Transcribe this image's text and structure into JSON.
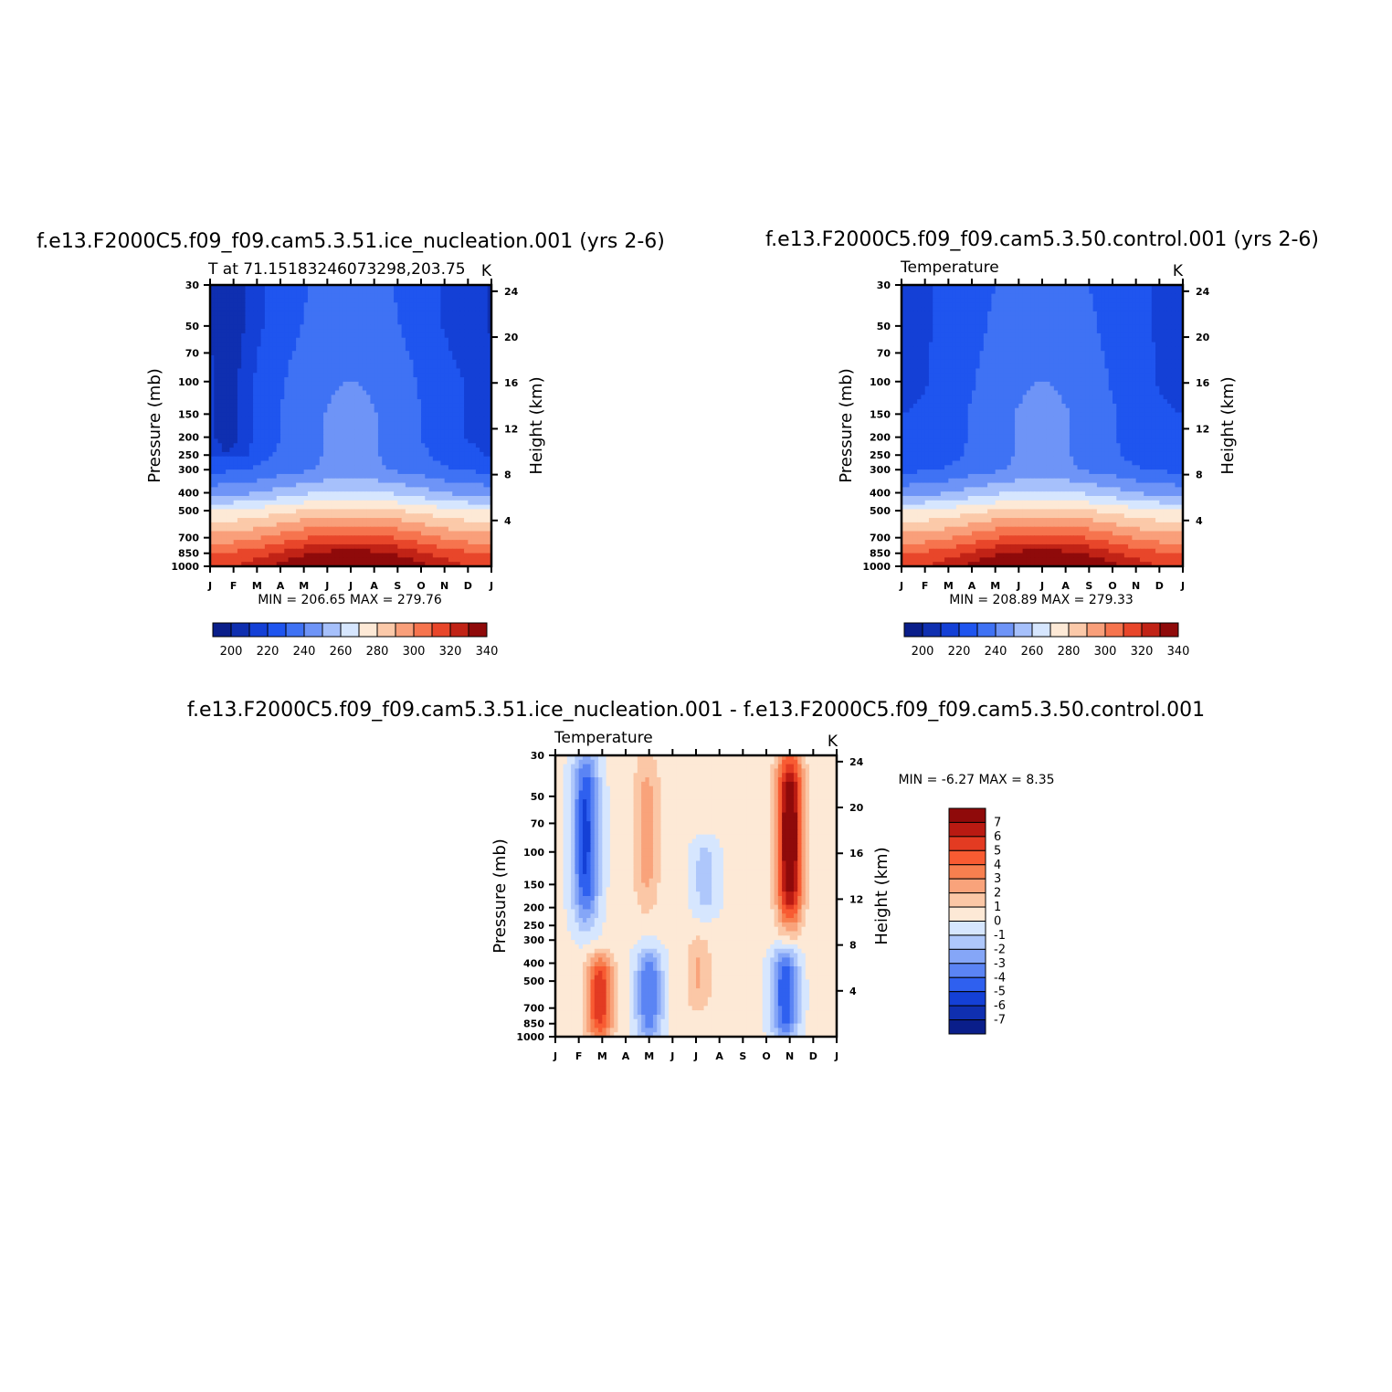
{
  "panels": [
    {
      "id": "test",
      "case_title": "f.e13.F2000C5.f09_f09.cam5.3.51.ice_nucleation.001 (yrs 2-6)",
      "left_string": "T at 71.15183246073298,203.75",
      "right_string": "K",
      "stats": "MIN = 206.65 MAX = 279.76",
      "ylabel": "Pressure (mb)",
      "y2label": "Height (km)"
    },
    {
      "id": "control",
      "case_title": "f.e13.F2000C5.f09_f09.cam5.3.50.control.001 (yrs 2-6)",
      "left_string": "Temperature",
      "right_string": "K",
      "stats": "MIN = 208.89 MAX = 279.33",
      "ylabel": "Pressure (mb)",
      "y2label": "Height (km)"
    },
    {
      "id": "diff",
      "case_title": "f.e13.F2000C5.f09_f09.cam5.3.51.ice_nucleation.001 - f.e13.F2000C5.f09_f09.cam5.3.50.control.001",
      "left_string": "Temperature",
      "right_string": "K",
      "stats": "MIN = -6.27 MAX = 8.35",
      "ylabel": "Pressure (mb)",
      "y2label": "Height (km)"
    }
  ],
  "axes": {
    "months": [
      "J",
      "F",
      "M",
      "A",
      "M",
      "J",
      "J",
      "A",
      "S",
      "O",
      "N",
      "D",
      "J"
    ],
    "pressure_ticks": [
      30,
      50,
      70,
      100,
      150,
      200,
      250,
      300,
      400,
      500,
      700,
      850,
      1000
    ],
    "height_ticks": [
      24,
      20,
      16,
      12,
      8,
      4
    ]
  },
  "colorbars": {
    "temperature": {
      "labels": [
        "200",
        "220",
        "240",
        "260",
        "280",
        "300",
        "320",
        "340"
      ],
      "colors": [
        "#0a1e8a",
        "#0f2fb0",
        "#1440d6",
        "#1f55ef",
        "#3f72f4",
        "#6e94f7",
        "#a6c0fb",
        "#d6e6fe",
        "#fde9d6",
        "#fbc9a9",
        "#f99f7a",
        "#f6744e",
        "#e8462a",
        "#c12316",
        "#8f0a0a"
      ]
    },
    "difference": {
      "labels": [
        "7",
        "6",
        "5",
        "4",
        "3",
        "2",
        "1",
        "0",
        "-1",
        "-2",
        "-3",
        "-4",
        "-5",
        "-6",
        "-7"
      ],
      "colors": [
        "#8f0a0a",
        "#b91a12",
        "#e33b22",
        "#f85b32",
        "#f77f4f",
        "#f9a37b",
        "#fbc7a6",
        "#fde9d6",
        "#d6e6fe",
        "#aec7fb",
        "#85a6f7",
        "#5b84f4",
        "#2f60ef",
        "#1440d6",
        "#0f2fb0",
        "#0a1e8a"
      ]
    }
  },
  "chart_data": [
    {
      "type": "heatmap",
      "title": "T at 71.15183246073298,203.75",
      "x_categories": [
        "J",
        "F",
        "M",
        "A",
        "M",
        "J",
        "J",
        "A",
        "S",
        "O",
        "N",
        "D",
        "J"
      ],
      "y_axis": "pressure (mb), log scale, 1000 at bottom, 30 at top",
      "y2_axis": "Height (km): 4, 8, 12, 16, 20, 24",
      "units": "K",
      "min": 206.65,
      "max": 279.76,
      "contour_levels": [
        200,
        205,
        210,
        215,
        220,
        225,
        230,
        235,
        240,
        245,
        250,
        255,
        260,
        265,
        270,
        275,
        280,
        285
      ],
      "profile_pressure": [
        30,
        50,
        70,
        100,
        150,
        200,
        250,
        300,
        400,
        500,
        700,
        850,
        1000
      ],
      "profile_jan": [
        212,
        212,
        213,
        214,
        214,
        214,
        216,
        219,
        228,
        240,
        252,
        260,
        264
      ],
      "profile_jul": [
        222,
        223,
        224,
        225,
        226,
        226,
        226,
        226,
        236,
        247,
        262,
        272,
        279
      ]
    },
    {
      "type": "heatmap",
      "title": "Temperature",
      "x_categories": [
        "J",
        "F",
        "M",
        "A",
        "M",
        "J",
        "J",
        "A",
        "S",
        "O",
        "N",
        "D",
        "J"
      ],
      "units": "K",
      "min": 208.89,
      "max": 279.33,
      "profile_pressure": [
        30,
        50,
        70,
        100,
        150,
        200,
        250,
        300,
        400,
        500,
        700,
        850,
        1000
      ],
      "profile_jan": [
        214,
        214,
        214,
        214,
        215,
        215,
        216,
        219,
        228,
        240,
        252,
        260,
        264
      ],
      "profile_jul": [
        222,
        223,
        224,
        225,
        226,
        226,
        226,
        226,
        236,
        247,
        262,
        272,
        279
      ]
    },
    {
      "type": "heatmap",
      "title": "Temperature",
      "x_categories": [
        "J",
        "F",
        "M",
        "A",
        "M",
        "J",
        "J",
        "A",
        "S",
        "O",
        "N",
        "D",
        "J"
      ],
      "units": "K",
      "min": -6.27,
      "max": 8.35,
      "contour_levels": [
        -7,
        -6,
        -5,
        -4,
        -3,
        -2,
        -1,
        0,
        1,
        2,
        3,
        4,
        5,
        6,
        7
      ],
      "features": [
        {
          "month_center": 1.3,
          "pressure_top": 30,
          "pressure_bottom": 230,
          "value": -5.5
        },
        {
          "month_center": 3.9,
          "pressure_top": 30,
          "pressure_bottom": 200,
          "value": 2.2
        },
        {
          "month_center": 10.0,
          "pressure_top": 30,
          "pressure_bottom": 230,
          "value": 8.35
        },
        {
          "month_center": 6.4,
          "pressure_top": 90,
          "pressure_bottom": 210,
          "value": -1.8
        },
        {
          "month_center": 4.0,
          "pressure_top": 350,
          "pressure_bottom": 1000,
          "value": -4.2
        },
        {
          "month_center": 9.8,
          "pressure_top": 350,
          "pressure_bottom": 1000,
          "value": -5.0
        },
        {
          "month_center": 1.9,
          "pressure_top": 380,
          "pressure_bottom": 1000,
          "value": 5.5
        },
        {
          "month_center": 6.1,
          "pressure_top": 300,
          "pressure_bottom": 700,
          "value": 1.8
        }
      ]
    }
  ]
}
